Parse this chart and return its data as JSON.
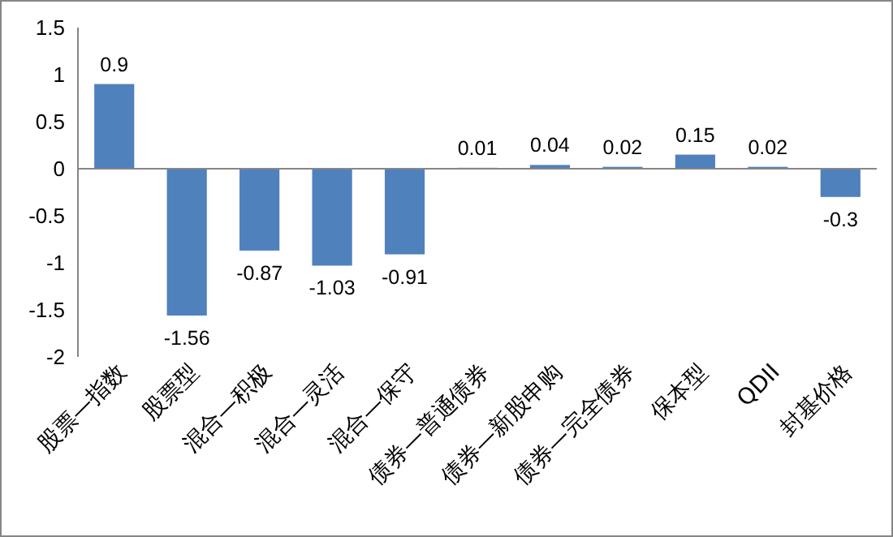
{
  "chart_data": {
    "type": "bar",
    "categories": [
      "股票—指数",
      "股票型",
      "混合—积极",
      "混合—灵活",
      "混合—保守",
      "债券—普通债券",
      "债券—新股申购",
      "债券—完全债券",
      "保本型",
      "QDII",
      "封基价格"
    ],
    "values": [
      0.9,
      -1.56,
      -0.87,
      -1.03,
      -0.91,
      0.01,
      0.04,
      0.02,
      0.15,
      0.02,
      -0.3
    ],
    "color": "#4f81bd",
    "ylim": [
      -2,
      1.5
    ],
    "yticks": [
      -2,
      -1.5,
      -1,
      -0.5,
      0,
      0.5,
      1,
      1.5
    ],
    "data_labels": true
  }
}
